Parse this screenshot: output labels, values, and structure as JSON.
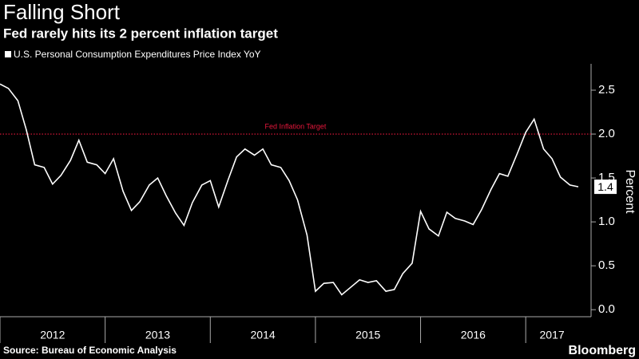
{
  "chart_data": {
    "type": "line",
    "title": "Falling Short",
    "subtitle": "Fed rarely hits its 2 percent inflation target",
    "y_label": "Percent",
    "source": "Source: Bureau of Economic Analysis",
    "brand": "Bloomberg",
    "x": [
      2012,
      2012.08,
      2012.17,
      2012.25,
      2012.33,
      2012.42,
      2012.5,
      2012.58,
      2012.67,
      2012.75,
      2012.83,
      2012.92,
      2013,
      2013.08,
      2013.17,
      2013.25,
      2013.33,
      2013.42,
      2013.5,
      2013.58,
      2013.67,
      2013.75,
      2013.83,
      2013.92,
      2014,
      2014.08,
      2014.17,
      2014.25,
      2014.33,
      2014.42,
      2014.5,
      2014.58,
      2014.67,
      2014.75,
      2014.83,
      2014.92,
      2015,
      2015.08,
      2015.17,
      2015.25,
      2015.33,
      2015.42,
      2015.5,
      2015.58,
      2015.67,
      2015.75,
      2015.83,
      2015.92,
      2016,
      2016.08,
      2016.17,
      2016.25,
      2016.33,
      2016.42,
      2016.5,
      2016.58,
      2016.67,
      2016.75,
      2016.83,
      2016.92,
      2017,
      2017.08,
      2017.17,
      2017.25,
      2017.33,
      2017.42,
      2017.5
    ],
    "series": [
      {
        "name": "U.S. Personal Consumption Expenditures Price Index YoY",
        "color": "#ffffff",
        "values": [
          2.57,
          2.52,
          2.38,
          2.05,
          1.65,
          1.62,
          1.43,
          1.53,
          1.7,
          1.93,
          1.68,
          1.65,
          1.55,
          1.72,
          1.35,
          1.13,
          1.23,
          1.42,
          1.5,
          1.3,
          1.1,
          0.96,
          1.22,
          1.42,
          1.47,
          1.17,
          1.48,
          1.74,
          1.83,
          1.76,
          1.83,
          1.65,
          1.62,
          1.47,
          1.25,
          0.85,
          0.21,
          0.3,
          0.31,
          0.17,
          0.25,
          0.34,
          0.31,
          0.33,
          0.21,
          0.23,
          0.41,
          0.53,
          1.12,
          0.92,
          0.84,
          1.11,
          1.04,
          1.01,
          0.97,
          1.14,
          1.37,
          1.55,
          1.52,
          1.78,
          2.02,
          2.17,
          1.83,
          1.72,
          1.51,
          1.42,
          1.4
        ]
      }
    ],
    "xlim": [
      2012,
      2017.5
    ],
    "xticks": [
      {
        "value": 2012,
        "label": "2012"
      },
      {
        "value": 2013,
        "label": "2013"
      },
      {
        "value": 2014,
        "label": "2014"
      },
      {
        "value": 2015,
        "label": "2015"
      },
      {
        "value": 2016,
        "label": "2016"
      },
      {
        "value": 2017,
        "label": "2017"
      }
    ],
    "ylim": [
      -0.08,
      2.8
    ],
    "yticks": [
      {
        "value": 0,
        "label": "0.0"
      },
      0.5,
      {
        "value": 1,
        "label": "1.0"
      },
      1.5,
      {
        "value": 2,
        "label": "2.0"
      },
      2.5
    ],
    "annotations": [
      {
        "text": "Fed Inflation Target",
        "y": 2,
        "color": "#e8173c"
      }
    ]
  }
}
